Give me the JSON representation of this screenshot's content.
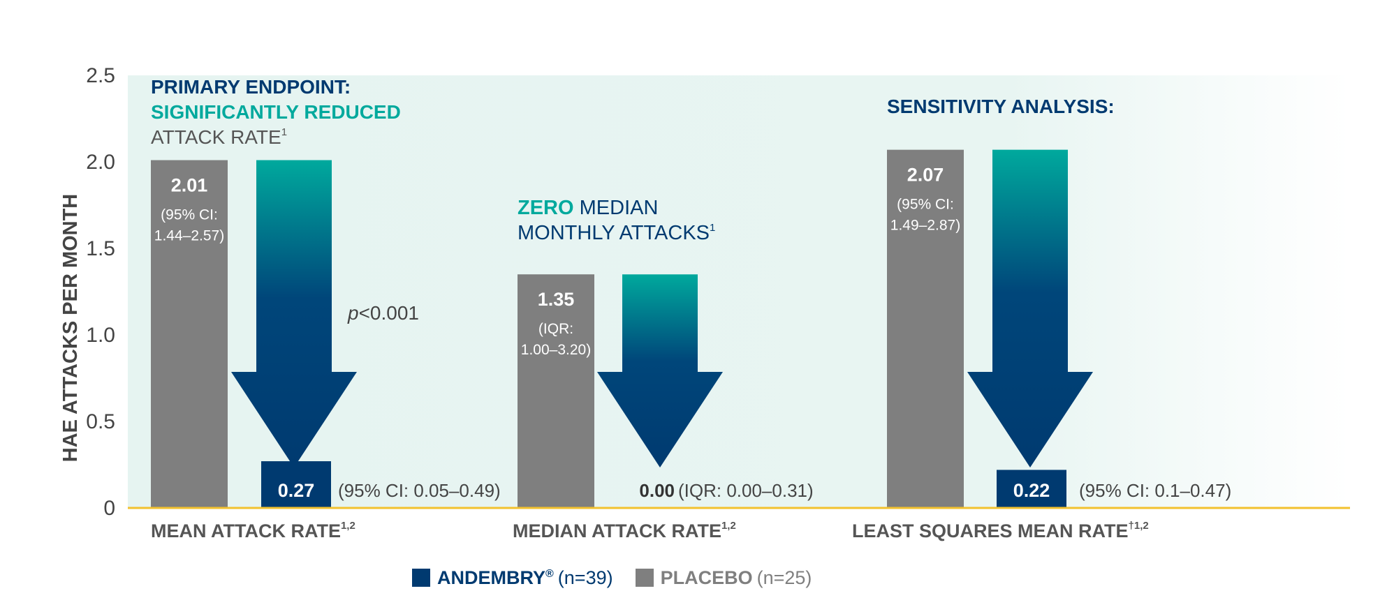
{
  "chart_data": {
    "type": "bar",
    "ylabel": "HAE ATTACKS PER MONTH",
    "ylim": [
      0,
      2.5
    ],
    "yticks": [
      0,
      0.5,
      1.0,
      1.5,
      2.0,
      2.5
    ],
    "ytick_labels": [
      "0",
      "0.5",
      "1.0",
      "1.5",
      "2.0",
      "2.5"
    ],
    "grid": true,
    "categories": [
      "MEAN ATTACK RATE",
      "MEDIAN ATTACK RATE",
      "LEAST SQUARES MEAN RATE"
    ],
    "category_superscripts": [
      "1,2",
      "1,2",
      "†1,2"
    ],
    "series": [
      {
        "name": "PLACEBO",
        "n_label": "(n=25)",
        "color": "#7f7f7f",
        "values": [
          2.01,
          1.35,
          2.07
        ]
      },
      {
        "name": "ANDEMBRY",
        "name_mark": "®",
        "n_label": "(n=39)",
        "color": "#003a70",
        "values": [
          0.27,
          0.0,
          0.22
        ]
      }
    ],
    "placebo_labels": [
      {
        "value": "2.01",
        "line1": "(95% CI:",
        "line2": "1.44–2.57)"
      },
      {
        "value": "1.35",
        "line1": "(IQR:",
        "line2": "1.00–3.20)"
      },
      {
        "value": "2.07",
        "line1": "(95% CI:",
        "line2": "1.49–2.87)"
      }
    ],
    "andembry_labels": [
      {
        "value": "0.27",
        "ci": "(95% CI: 0.05–0.49)"
      },
      {
        "value": "0.00",
        "ci": "(IQR: 0.00–0.31)"
      },
      {
        "value": "0.22",
        "ci": "(95% CI: 0.1–0.47)"
      }
    ],
    "annotations": {
      "primary_line1": "PRIMARY ENDPOINT:",
      "primary_line2": "SIGNIFICANTLY REDUCED",
      "primary_line3": "ATTACK RATE",
      "primary_sup": "1",
      "pvalue_p": "p",
      "pvalue_rest": "<0.001",
      "zero_word": "ZERO",
      "zero_rest": " MEDIAN",
      "zero_line2": "MONTHLY ATTACKS",
      "zero_sup": "1",
      "sensitivity": "SENSITIVITY ANALYSIS:"
    },
    "colors": {
      "navy": "#003a70",
      "teal": "#00a99d",
      "gray": "#7f7f7f",
      "background": "#e8f5f2",
      "grid": "#a8dccf",
      "baseline": "#f2c12e"
    }
  }
}
